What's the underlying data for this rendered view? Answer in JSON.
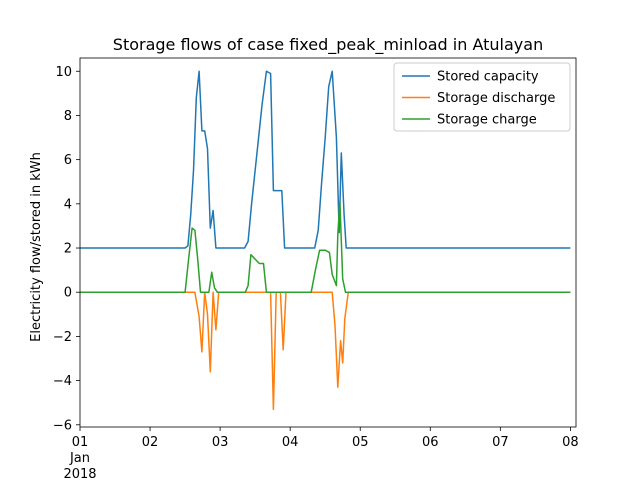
{
  "chart_data": {
    "type": "line",
    "title": "Storage flows of case fixed_peak_minload in Atulayan",
    "xlabel": "",
    "ylabel": "Electricity flow/stored in kWh",
    "xlim": [
      0,
      7.08
    ],
    "ylim": [
      -6.1,
      10.6
    ],
    "xticks": [
      {
        "value": 0,
        "lines": [
          "01",
          "Jan",
          "2018"
        ]
      },
      {
        "value": 1,
        "lines": [
          "02"
        ]
      },
      {
        "value": 2,
        "lines": [
          "03"
        ]
      },
      {
        "value": 3,
        "lines": [
          "04"
        ]
      },
      {
        "value": 4,
        "lines": [
          "05"
        ]
      },
      {
        "value": 5,
        "lines": [
          "06"
        ]
      },
      {
        "value": 6,
        "lines": [
          "07"
        ]
      },
      {
        "value": 7,
        "lines": [
          "08"
        ]
      }
    ],
    "yticks": [
      -6,
      -4,
      -2,
      0,
      2,
      4,
      6,
      8,
      10
    ],
    "legend": {
      "position": "upper-right"
    },
    "series": [
      {
        "name": "Stored capacity",
        "color": "#1f77b4",
        "points": [
          [
            0,
            2.0
          ],
          [
            1.5,
            2.0
          ],
          [
            1.54,
            2.1
          ],
          [
            1.58,
            3.5
          ],
          [
            1.62,
            5.5
          ],
          [
            1.66,
            8.8
          ],
          [
            1.7,
            10.0
          ],
          [
            1.74,
            7.3
          ],
          [
            1.78,
            7.3
          ],
          [
            1.82,
            6.5
          ],
          [
            1.86,
            2.9
          ],
          [
            1.9,
            3.7
          ],
          [
            1.94,
            2.0
          ],
          [
            2.35,
            2.0
          ],
          [
            2.4,
            2.3
          ],
          [
            2.45,
            4.0
          ],
          [
            2.5,
            5.5
          ],
          [
            2.55,
            7.0
          ],
          [
            2.6,
            8.5
          ],
          [
            2.66,
            10.0
          ],
          [
            2.72,
            9.9
          ],
          [
            2.76,
            4.6
          ],
          [
            2.88,
            4.6
          ],
          [
            2.92,
            2.0
          ],
          [
            3.35,
            2.0
          ],
          [
            3.4,
            2.8
          ],
          [
            3.45,
            5.0
          ],
          [
            3.5,
            7.0
          ],
          [
            3.55,
            9.3
          ],
          [
            3.6,
            10.0
          ],
          [
            3.66,
            7.0
          ],
          [
            3.7,
            2.7
          ],
          [
            3.73,
            6.3
          ],
          [
            3.77,
            3.5
          ],
          [
            3.8,
            2.0
          ],
          [
            7.0,
            2.0
          ]
        ]
      },
      {
        "name": "Storage discharge",
        "color": "#ff7f0e",
        "points": [
          [
            0,
            0
          ],
          [
            1.64,
            0
          ],
          [
            1.7,
            -1.1
          ],
          [
            1.74,
            -2.7
          ],
          [
            1.78,
            0
          ],
          [
            1.82,
            -1.0
          ],
          [
            1.86,
            -3.6
          ],
          [
            1.9,
            0
          ],
          [
            1.94,
            -1.7
          ],
          [
            1.98,
            0
          ],
          [
            2.72,
            0
          ],
          [
            2.76,
            -5.3
          ],
          [
            2.8,
            0
          ],
          [
            2.86,
            0
          ],
          [
            2.9,
            -2.6
          ],
          [
            2.94,
            0
          ],
          [
            3.6,
            0
          ],
          [
            3.64,
            -1.5
          ],
          [
            3.68,
            -4.3
          ],
          [
            3.72,
            -2.2
          ],
          [
            3.75,
            -3.2
          ],
          [
            3.78,
            -1.2
          ],
          [
            3.83,
            0
          ],
          [
            7.0,
            0
          ]
        ]
      },
      {
        "name": "Storage charge",
        "color": "#2ca02c",
        "points": [
          [
            0,
            0
          ],
          [
            1.5,
            0
          ],
          [
            1.55,
            1.5
          ],
          [
            1.6,
            2.9
          ],
          [
            1.64,
            2.8
          ],
          [
            1.68,
            1.5
          ],
          [
            1.72,
            0
          ],
          [
            1.84,
            0
          ],
          [
            1.88,
            0.9
          ],
          [
            1.92,
            0.2
          ],
          [
            1.96,
            0
          ],
          [
            2.36,
            0
          ],
          [
            2.4,
            0.3
          ],
          [
            2.44,
            1.7
          ],
          [
            2.5,
            1.5
          ],
          [
            2.56,
            1.3
          ],
          [
            2.62,
            1.3
          ],
          [
            2.66,
            0
          ],
          [
            3.3,
            0
          ],
          [
            3.36,
            1.0
          ],
          [
            3.42,
            1.9
          ],
          [
            3.5,
            1.9
          ],
          [
            3.56,
            1.8
          ],
          [
            3.6,
            0.8
          ],
          [
            3.66,
            0.3
          ],
          [
            3.68,
            2.6
          ],
          [
            3.71,
            4.1
          ],
          [
            3.75,
            0.6
          ],
          [
            3.79,
            0
          ],
          [
            7.0,
            0
          ]
        ]
      }
    ]
  }
}
